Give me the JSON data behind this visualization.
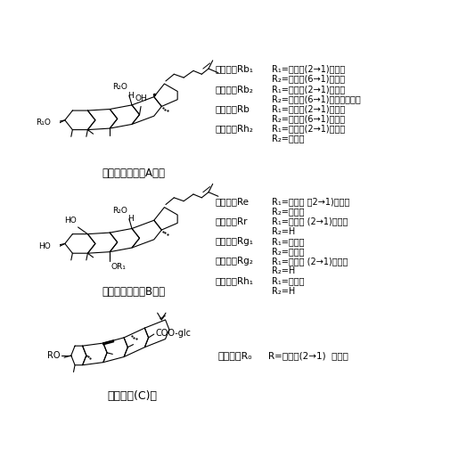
{
  "bg_color": "#ffffff",
  "fig_width": 5.33,
  "fig_height": 5.14,
  "dpi": 100,
  "title_A": "人参皂苷二醇（A）型",
  "title_B": "人参皂苷三醇（B）型",
  "title_C": "齐墩果酸(C)型",
  "right_A": [
    [
      "人参皂苷Rb₁",
      "R₁=葡萄糖(2→1)葡萄糖"
    ],
    [
      "",
      "R₂=葡萄糖(6→1)葡萄糖"
    ],
    [
      "人参皂苷Rb₂",
      "R₁=葡萄糖(2→1)葡萄糖"
    ],
    [
      "",
      "R₂=葡萄糖(6→1)阿拉伯吡喃糖"
    ],
    [
      "人参皂苷Rb",
      "R₁=葡萄糖(2→1)葡萄糖"
    ],
    [
      "",
      "R₂=葡萄糖(6→1)葡萄糖"
    ],
    [
      "人参皂苷Rh₂",
      "R₁=葡萄糖(2→1)葡萄糖"
    ],
    [
      "",
      "R₂=葡萄糖"
    ]
  ],
  "right_B": [
    [
      "人参皂苷Re",
      "R₁=葡萄糖 （2→1)鼠李糖"
    ],
    [
      "",
      "R₂=葡萄糖"
    ],
    [
      "人参皂苷Rr",
      "R₁=葡萄糖 (2→1)葡萄糖"
    ],
    [
      "",
      "R₂=H"
    ],
    [
      "人参皂苷Rg₁",
      "R₁=葡萄糖"
    ],
    [
      "",
      "R₂=葡萄糖"
    ],
    [
      "人参皂苷Rg₂",
      "R₁=葡萄糖 (2→1)鼠李糖"
    ],
    [
      "",
      "R₂=H"
    ],
    [
      "人参皂苷Rh₁",
      "R₁=葡萄糖"
    ],
    [
      "",
      "R₂=H"
    ]
  ],
  "right_C_name": "人参皂苷Rₒ",
  "right_C_val": "R=葡萄糖(2→1)  葡萄糖",
  "fs_name": 7.5,
  "fs_val": 7.0,
  "fs_title": 8.5
}
